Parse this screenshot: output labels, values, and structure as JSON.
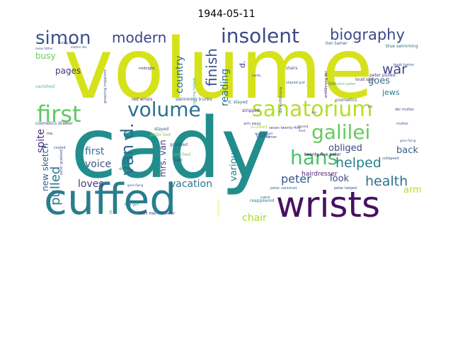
{
  "title": "1944-05-11",
  "chart_data": {
    "type": "wordcloud",
    "title": "1944-05-11",
    "words": [
      {
        "text": "volume",
        "weight": 100,
        "color": "#d5e21a"
      },
      {
        "text": "cady",
        "weight": 98,
        "color": "#218e8d"
      },
      {
        "text": "cuffed",
        "weight": 62,
        "color": "#287d8e"
      },
      {
        "text": "wrists",
        "weight": 52,
        "color": "#471063"
      },
      {
        "text": "sanatorium",
        "weight": 32,
        "color": "#b5de2b"
      },
      {
        "text": "volume",
        "weight": 30,
        "color": "#2d708e"
      },
      {
        "text": "first",
        "weight": 30,
        "color": "#5ec962"
      },
      {
        "text": "insolent",
        "weight": 28,
        "color": "#3e4989"
      },
      {
        "text": "galilei",
        "weight": 28,
        "color": "#65cb5e"
      },
      {
        "text": "hans",
        "weight": 28,
        "color": "#4ac16d"
      },
      {
        "text": "simon",
        "weight": 26,
        "color": "#3b528b"
      },
      {
        "text": "biography",
        "weight": 20,
        "color": "#3f4889"
      },
      {
        "text": "modern",
        "weight": 20,
        "color": "#404688"
      },
      {
        "text": "finish",
        "weight": 20,
        "color": "#3b528b"
      },
      {
        "text": "van d.",
        "weight": 22,
        "color": "#31688e"
      },
      {
        "text": "pulled",
        "weight": 18,
        "color": "#2a788e"
      },
      {
        "text": "helped",
        "weight": 18,
        "color": "#26828e"
      },
      {
        "text": "health",
        "weight": 18,
        "color": "#2c728e"
      },
      {
        "text": "war",
        "weight": 18,
        "color": "#414487"
      },
      {
        "text": "peter",
        "weight": 16,
        "color": "#3a548c"
      },
      {
        "text": "country",
        "weight": 14,
        "color": "#31688e"
      },
      {
        "text": "reading",
        "weight": 14,
        "color": "#2c738e"
      },
      {
        "text": "loves",
        "weight": 13,
        "color": "#443983"
      },
      {
        "text": "vacation",
        "weight": 13,
        "color": "#2b758e"
      },
      {
        "text": "chair",
        "weight": 13,
        "color": "#addc30"
      },
      {
        "text": "first",
        "weight": 13,
        "color": "#2d708e"
      },
      {
        "text": "voice",
        "weight": 13,
        "color": "#3b528b"
      },
      {
        "text": "spite",
        "weight": 13,
        "color": "#472d7b"
      },
      {
        "text": "pages",
        "weight": 12,
        "color": "#46327e"
      },
      {
        "text": "busy",
        "weight": 12,
        "color": "#6ccd5a"
      },
      {
        "text": "goes",
        "weight": 12,
        "color": "#2f6c8e"
      },
      {
        "text": "back",
        "weight": 12,
        "color": "#355f8d"
      },
      {
        "text": "obliged",
        "weight": 12,
        "color": "#404688"
      },
      {
        "text": "look",
        "weight": 12,
        "color": "#3e4989"
      },
      {
        "text": "arm",
        "weight": 12,
        "color": "#b8de29"
      },
      {
        "text": "various",
        "weight": 12,
        "color": "#27808e"
      },
      {
        "text": "mrs. van",
        "weight": 11,
        "color": "#443b84"
      },
      {
        "text": "new sketch",
        "weight": 11,
        "color": "#33638d"
      },
      {
        "text": "jews",
        "weight": 10,
        "color": "#287c8e"
      },
      {
        "text": "d.",
        "weight": 10,
        "color": "#482878"
      },
      {
        "text": "hairdresser",
        "weight": 8,
        "color": "#481f70"
      },
      {
        "text": "red wrists",
        "weight": 5,
        "color": "#482475"
      },
      {
        "text": "swimming trunks",
        "weight": 5,
        "color": "#3e4989"
      },
      {
        "text": "d. stayed",
        "weight": 5,
        "color": "#31688e"
      },
      {
        "text": "peter pulled",
        "weight": 5,
        "color": "#46327e"
      },
      {
        "text": "lion tamer",
        "weight": 5,
        "color": "#3b528b"
      },
      {
        "text": "blue swimming",
        "weight": 5,
        "color": "#2c728e"
      },
      {
        "text": "loud sigh",
        "weight": 5,
        "color": "#472c7a"
      },
      {
        "text": "stripped",
        "weight": 5,
        "color": "#46337e"
      },
      {
        "text": "grabbed",
        "weight": 5,
        "color": "#3a548c"
      },
      {
        "text": "punched",
        "weight": 5,
        "color": "#5ec962"
      },
      {
        "text": "stayed",
        "weight": 5,
        "color": "#3b528b"
      },
      {
        "text": "peter lied",
        "weight": 4,
        "color": "#7ad151"
      },
      {
        "text": "belt",
        "weight": 5,
        "color": "#3e4989"
      },
      {
        "text": "twenty-five peter",
        "weight": 5,
        "color": "#440154"
      },
      {
        "text": "cosmetics",
        "weight": 4,
        "color": "#3b528b"
      },
      {
        "text": "cosmetics drawer",
        "weight": 4,
        "color": "#414487"
      },
      {
        "text": "old girl",
        "weight": 4,
        "color": "#2c728e"
      },
      {
        "text": "hurt me.",
        "weight": 4,
        "color": "#482878"
      },
      {
        "text": "drawer",
        "weight": 4,
        "color": "#3e4989"
      },
      {
        "text": "reappeared",
        "weight": 4,
        "color": "#228c8d"
      },
      {
        "text": "scolded",
        "weight": 4,
        "color": "#addc30"
      },
      {
        "text": "trunks",
        "weight": 4,
        "color": "#3b528b"
      },
      {
        "text": "lion",
        "weight": 4,
        "color": "#2c728e"
      },
      {
        "text": "collapsed",
        "weight": 3,
        "color": "#3a548c"
      },
      {
        "text": "peter vanished",
        "weight": 3,
        "color": "#2c728e"
      },
      {
        "text": "peter helped",
        "weight": 3,
        "color": "#3e4989"
      },
      {
        "text": "vanished",
        "weight": 4,
        "color": "#48c16e"
      },
      {
        "text": "cooled",
        "weight": 3,
        "color": "#3b528b"
      },
      {
        "text": "stairs",
        "weight": 4,
        "color": "#3b528b"
      },
      {
        "text": "nothing helped",
        "weight": 3,
        "color": "#35b779"
      },
      {
        "text": "stayed put",
        "weight": 3,
        "color": "#31688e"
      },
      {
        "text": "catch peter",
        "weight": 3,
        "color": "#5ec962"
      },
      {
        "text": "die entführung",
        "weight": 3,
        "color": "#355f8d"
      },
      {
        "text": "entführung der",
        "weight": 3,
        "color": "#440154"
      },
      {
        "text": "der mutter",
        "weight": 3,
        "color": "#3e4989"
      },
      {
        "text": "mutter",
        "weight": 3,
        "color": "#355f8d"
      },
      {
        "text": "book horror",
        "weight": 3,
        "color": "#3b528b"
      },
      {
        "text": "me.",
        "weight": 3,
        "color": "#482878"
      },
      {
        "text": "die",
        "weight": 3,
        "color": "#2c728e"
      },
      {
        "text": "midnight.",
        "weight": 3,
        "color": "#482878"
      },
      {
        "text": "gone flying",
        "weight": 2,
        "color": "#3b528b"
      },
      {
        "text": "went toward",
        "weight": 2,
        "color": "#3e4989"
      },
      {
        "text": "arm away",
        "weight": 3,
        "color": "#3b528b"
      },
      {
        "text": "seven twenty-five",
        "weight": 3,
        "color": "#3e4989"
      },
      {
        "text": "fond.",
        "weight": 2,
        "color": "#482878"
      },
      {
        "text": "tamer",
        "weight": 3,
        "color": "#3b528b"
      },
      {
        "text": "cadycoming",
        "weight": 2,
        "color": "#fde725"
      },
      {
        "text": "writing desk",
        "weight": 2,
        "color": "#482878"
      },
      {
        "text": "mother like",
        "weight": 2,
        "color": "#3b528b"
      },
      {
        "text": "mean father",
        "weight": 2,
        "color": "#3e4989"
      },
      {
        "text": "groaning impatient",
        "weight": 3,
        "color": "#3b528b"
      },
      {
        "text": "peter grabbed",
        "weight": 3,
        "color": "#3b528b"
      },
      {
        "text": "sighed",
        "weight": 2,
        "color": "#3e4989"
      },
      {
        "text": "old",
        "weight": 2,
        "color": "#3b528b"
      },
      {
        "text": "till",
        "weight": 2,
        "color": "#31688e"
      },
      {
        "text": "sea",
        "weight": 2,
        "color": "#3b528b"
      },
      {
        "text": "hardly",
        "weight": 2,
        "color": "#3e4989"
      },
      {
        "text": "starved",
        "weight": 2,
        "color": "#482878"
      },
      {
        "text": "gone flying",
        "weight": 2,
        "color": "#3b528b"
      }
    ]
  }
}
